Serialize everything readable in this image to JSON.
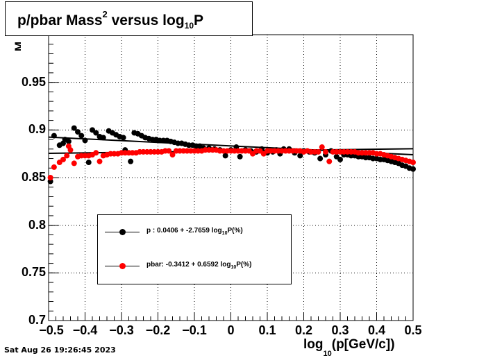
{
  "title": {
    "main": "p/pbar Mass",
    "sup": "2",
    "rest": " versus log",
    "sub": "10",
    "end": "P"
  },
  "timestamp": "Sat Aug 26 19:26:45 2023",
  "xlabel": {
    "pre": "log",
    "sub": "10",
    "post": "(p[GeV/c])"
  },
  "ylabel_fragment": "M",
  "colors": {
    "p": "#000000",
    "pbar": "#ff0000",
    "fit_p": "#000000",
    "fit_pbar": "#000000"
  },
  "legend": {
    "p": {
      "pre": "p   : 0.0406 + -2.7659 log",
      "sub": "10",
      "post": "P(%)"
    },
    "pbar": {
      "pre": "pbar: -0.3412 + 0.6592 log",
      "sub": "10",
      "post": "P(%)"
    }
  },
  "chart_data": {
    "type": "scatter",
    "xlim": [
      -0.5,
      0.5
    ],
    "ylim": [
      0.7,
      1.0
    ],
    "grid": true,
    "x_ticks": [
      "−0.5",
      "−0.4",
      "−0.3",
      "−0.2",
      "−0.1",
      "0",
      "0.1",
      "0.2",
      "0.3",
      "0.4",
      "0.5"
    ],
    "y_ticks": [
      "0.7",
      "0.75",
      "0.8",
      "0.85",
      "0.9",
      "0.95"
    ],
    "y_tick_values": [
      0.7,
      0.75,
      0.8,
      0.85,
      0.9,
      0.95
    ],
    "x_tick_values": [
      -0.5,
      -0.4,
      -0.3,
      -0.2,
      -0.1,
      0,
      0.1,
      0.2,
      0.3,
      0.4,
      0.5
    ],
    "fit_lines": [
      {
        "name": "p",
        "x": [
          -0.5,
          0.5
        ],
        "y": [
          0.8925,
          0.874
        ]
      },
      {
        "name": "pbar",
        "x": [
          -0.5,
          0.5
        ],
        "y": [
          0.8755,
          0.8803
        ]
      }
    ],
    "series": [
      {
        "name": "p",
        "points": [
          [
            -0.495,
            0.846
          ],
          [
            -0.485,
            0.894
          ],
          [
            -0.47,
            0.884
          ],
          [
            -0.46,
            0.886
          ],
          [
            -0.455,
            0.89
          ],
          [
            -0.445,
            0.888
          ],
          [
            -0.43,
            0.902
          ],
          [
            -0.42,
            0.898
          ],
          [
            -0.41,
            0.894
          ],
          [
            -0.4,
            0.889
          ],
          [
            -0.39,
            0.866
          ],
          [
            -0.38,
            0.9
          ],
          [
            -0.37,
            0.897
          ],
          [
            -0.36,
            0.893
          ],
          [
            -0.35,
            0.892
          ],
          [
            -0.335,
            0.899
          ],
          [
            -0.325,
            0.897
          ],
          [
            -0.315,
            0.895
          ],
          [
            -0.305,
            0.893
          ],
          [
            -0.295,
            0.892
          ],
          [
            -0.29,
            0.879
          ],
          [
            -0.275,
            0.867
          ],
          [
            -0.265,
            0.897
          ],
          [
            -0.255,
            0.896
          ],
          [
            -0.245,
            0.894
          ],
          [
            -0.235,
            0.892
          ],
          [
            -0.225,
            0.891
          ],
          [
            -0.215,
            0.89
          ],
          [
            -0.205,
            0.89
          ],
          [
            -0.195,
            0.889
          ],
          [
            -0.185,
            0.889
          ],
          [
            -0.175,
            0.889
          ],
          [
            -0.165,
            0.888
          ],
          [
            -0.155,
            0.887
          ],
          [
            -0.145,
            0.886
          ],
          [
            -0.135,
            0.886
          ],
          [
            -0.125,
            0.885
          ],
          [
            -0.115,
            0.884
          ],
          [
            -0.105,
            0.884
          ],
          [
            -0.095,
            0.883
          ],
          [
            -0.085,
            0.883
          ],
          [
            -0.075,
            0.881
          ],
          [
            -0.06,
            0.881
          ],
          [
            -0.045,
            0.88
          ],
          [
            -0.03,
            0.879
          ],
          [
            -0.015,
            0.873
          ],
          [
            0.0,
            0.879
          ],
          [
            0.015,
            0.882
          ],
          [
            0.025,
            0.872
          ],
          [
            0.04,
            0.879
          ],
          [
            0.055,
            0.878
          ],
          [
            0.07,
            0.877
          ],
          [
            0.085,
            0.88
          ],
          [
            0.1,
            0.876
          ],
          [
            0.115,
            0.877
          ],
          [
            0.125,
            0.879
          ],
          [
            0.135,
            0.875
          ],
          [
            0.145,
            0.88
          ],
          [
            0.16,
            0.88
          ],
          [
            0.175,
            0.876
          ],
          [
            0.19,
            0.873
          ],
          [
            0.2,
            0.878
          ],
          [
            0.215,
            0.877
          ],
          [
            0.23,
            0.876
          ],
          [
            0.245,
            0.87
          ],
          [
            0.26,
            0.874
          ],
          [
            0.275,
            0.878
          ],
          [
            0.29,
            0.872
          ],
          [
            0.3,
            0.869
          ],
          [
            0.31,
            0.874
          ],
          [
            0.32,
            0.874
          ],
          [
            0.33,
            0.873
          ],
          [
            0.34,
            0.873
          ],
          [
            0.35,
            0.872
          ],
          [
            0.36,
            0.872
          ],
          [
            0.37,
            0.871
          ],
          [
            0.38,
            0.871
          ],
          [
            0.39,
            0.87
          ],
          [
            0.4,
            0.87
          ],
          [
            0.41,
            0.869
          ],
          [
            0.42,
            0.869
          ],
          [
            0.43,
            0.868
          ],
          [
            0.44,
            0.867
          ],
          [
            0.45,
            0.866
          ],
          [
            0.46,
            0.865
          ],
          [
            0.47,
            0.863
          ],
          [
            0.48,
            0.862
          ],
          [
            0.49,
            0.86
          ],
          [
            0.5,
            0.859
          ]
        ]
      },
      {
        "name": "pbar",
        "points": [
          [
            -0.495,
            0.85
          ],
          [
            -0.485,
            0.861
          ],
          [
            -0.47,
            0.866
          ],
          [
            -0.46,
            0.869
          ],
          [
            -0.45,
            0.873
          ],
          [
            -0.445,
            0.883
          ],
          [
            -0.44,
            0.879
          ],
          [
            -0.43,
            0.865
          ],
          [
            -0.42,
            0.872
          ],
          [
            -0.41,
            0.873
          ],
          [
            -0.4,
            0.873
          ],
          [
            -0.39,
            0.873
          ],
          [
            -0.38,
            0.874
          ],
          [
            -0.37,
            0.876
          ],
          [
            -0.36,
            0.867
          ],
          [
            -0.35,
            0.873
          ],
          [
            -0.34,
            0.874
          ],
          [
            -0.33,
            0.875
          ],
          [
            -0.32,
            0.875
          ],
          [
            -0.31,
            0.875
          ],
          [
            -0.3,
            0.876
          ],
          [
            -0.29,
            0.876
          ],
          [
            -0.28,
            0.876
          ],
          [
            -0.27,
            0.876
          ],
          [
            -0.26,
            0.876
          ],
          [
            -0.25,
            0.877
          ],
          [
            -0.24,
            0.877
          ],
          [
            -0.23,
            0.877
          ],
          [
            -0.22,
            0.877
          ],
          [
            -0.21,
            0.877
          ],
          [
            -0.2,
            0.877
          ],
          [
            -0.19,
            0.877
          ],
          [
            -0.18,
            0.878
          ],
          [
            -0.17,
            0.878
          ],
          [
            -0.16,
            0.874
          ],
          [
            -0.15,
            0.878
          ],
          [
            -0.14,
            0.878
          ],
          [
            -0.13,
            0.878
          ],
          [
            -0.12,
            0.878
          ],
          [
            -0.11,
            0.878
          ],
          [
            -0.1,
            0.878
          ],
          [
            -0.09,
            0.878
          ],
          [
            -0.08,
            0.878
          ],
          [
            -0.07,
            0.879
          ],
          [
            -0.06,
            0.879
          ],
          [
            -0.05,
            0.879
          ],
          [
            -0.04,
            0.879
          ],
          [
            -0.03,
            0.878
          ],
          [
            -0.02,
            0.878
          ],
          [
            -0.01,
            0.878
          ],
          [
            0.0,
            0.878
          ],
          [
            0.01,
            0.878
          ],
          [
            0.02,
            0.878
          ],
          [
            0.03,
            0.878
          ],
          [
            0.04,
            0.878
          ],
          [
            0.05,
            0.878
          ],
          [
            0.06,
            0.875
          ],
          [
            0.07,
            0.878
          ],
          [
            0.08,
            0.878
          ],
          [
            0.09,
            0.875
          ],
          [
            0.1,
            0.878
          ],
          [
            0.11,
            0.878
          ],
          [
            0.12,
            0.878
          ],
          [
            0.13,
            0.878
          ],
          [
            0.14,
            0.878
          ],
          [
            0.15,
            0.878
          ],
          [
            0.16,
            0.878
          ],
          [
            0.17,
            0.878
          ],
          [
            0.18,
            0.878
          ],
          [
            0.19,
            0.878
          ],
          [
            0.2,
            0.877
          ],
          [
            0.21,
            0.878
          ],
          [
            0.22,
            0.877
          ],
          [
            0.23,
            0.877
          ],
          [
            0.24,
            0.877
          ],
          [
            0.25,
            0.882
          ],
          [
            0.26,
            0.877
          ],
          [
            0.27,
            0.867
          ],
          [
            0.28,
            0.877
          ],
          [
            0.29,
            0.877
          ],
          [
            0.3,
            0.877
          ],
          [
            0.31,
            0.877
          ],
          [
            0.32,
            0.877
          ],
          [
            0.33,
            0.877
          ],
          [
            0.34,
            0.877
          ],
          [
            0.35,
            0.876
          ],
          [
            0.36,
            0.876
          ],
          [
            0.37,
            0.876
          ],
          [
            0.38,
            0.876
          ],
          [
            0.39,
            0.876
          ],
          [
            0.4,
            0.875
          ],
          [
            0.41,
            0.875
          ],
          [
            0.42,
            0.874
          ],
          [
            0.43,
            0.873
          ],
          [
            0.44,
            0.872
          ],
          [
            0.45,
            0.871
          ],
          [
            0.46,
            0.87
          ],
          [
            0.47,
            0.869
          ],
          [
            0.48,
            0.868
          ],
          [
            0.49,
            0.867
          ],
          [
            0.5,
            0.866
          ]
        ]
      }
    ]
  }
}
